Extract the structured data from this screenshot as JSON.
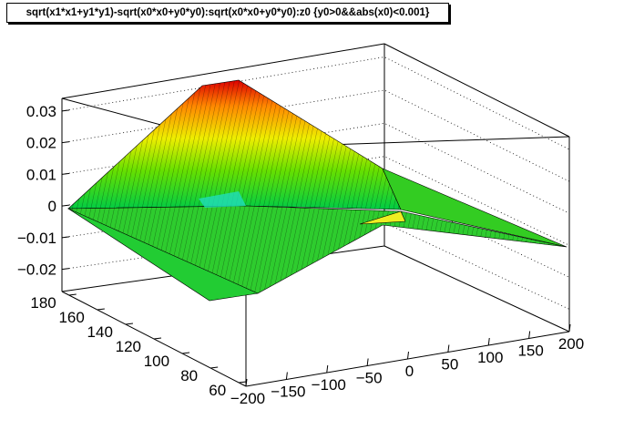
{
  "header": {
    "title": "sqrt(x1*x1+y1*y1)-sqrt(x0*x0+y0*y0):sqrt(x0*x0+y0*y0):z0 {y0>0&&abs(x0)<0.001}"
  },
  "chart_data": {
    "type": "surface",
    "title": "sqrt(x1*x1+y1*y1)-sqrt(x0*x0+y0*y0):sqrt(x0*x0+y0*y0):z0 {y0>0&&abs(x0)<0.001}",
    "xlabel": "",
    "ylabel": "",
    "zlabel": "",
    "xlim": [
      -200,
      200
    ],
    "ylim": [
      55,
      185
    ],
    "zlim": [
      -0.027,
      0.034
    ],
    "x_ticks": [
      -200,
      -150,
      -100,
      -50,
      0,
      50,
      100,
      150,
      200
    ],
    "x_tick_labels": [
      "−200",
      "−150",
      "−100",
      "−50",
      "0",
      "50",
      "100",
      "150",
      "200"
    ],
    "y_ticks": [
      60,
      80,
      100,
      120,
      140,
      160,
      180
    ],
    "y_tick_labels": [
      "60",
      "80",
      "100",
      "120",
      "140",
      "160",
      "180"
    ],
    "z_ticks": [
      -0.02,
      -0.01,
      0,
      0.01,
      0.02,
      0.03
    ],
    "z_tick_labels": [
      "−0.02",
      "−0.01",
      "0",
      "0.01",
      "0.02",
      "0.03"
    ],
    "grid": true,
    "colormap": [
      "#00cc44",
      "#33dd00",
      "#99ee00",
      "#eeee00",
      "#ffaa00",
      "#ff5500",
      "#dd0000"
    ],
    "surface_points": [
      {
        "x": -200,
        "y": 180,
        "z": 0.0
      },
      {
        "x": -200,
        "y": 60,
        "z": 0.0
      },
      {
        "x": 200,
        "y": 180,
        "z": 0.0
      },
      {
        "x": 200,
        "y": 60,
        "z": 0.0
      },
      {
        "x": -200,
        "y": 120,
        "z": 0.0336
      },
      {
        "x": 0,
        "y": 60,
        "z": -0.026
      },
      {
        "x": 60,
        "y": 120,
        "z": -0.003
      },
      {
        "x": 0,
        "y": 180,
        "z": 0.0
      },
      {
        "x": 200,
        "y": 120,
        "z": 0.0
      }
    ]
  }
}
